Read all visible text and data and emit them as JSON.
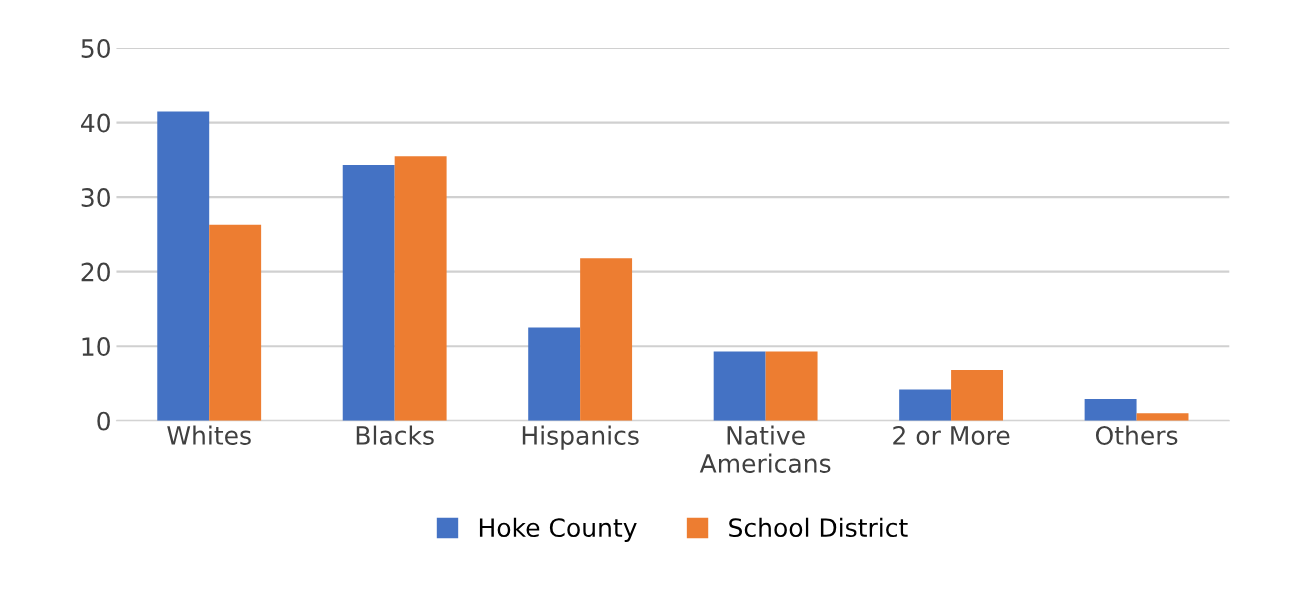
{
  "chart_data": {
    "type": "bar",
    "categories": [
      "Whites",
      "Blacks",
      "Hispanics",
      "Native\nAmericans",
      "2 or More",
      "Others"
    ],
    "series": [
      {
        "name": "Hoke County",
        "color": "#4472c4",
        "values": [
          41.5,
          34.3,
          12.5,
          9.3,
          4.2,
          2.9
        ]
      },
      {
        "name": "School District",
        "color": "#ed7d31",
        "values": [
          26.3,
          35.5,
          21.8,
          9.3,
          6.8,
          1.0
        ]
      }
    ],
    "ylim": [
      0,
      50
    ],
    "yticks": [
      0,
      10,
      20,
      30,
      40,
      50
    ],
    "grid": "y",
    "legend": "bottom"
  }
}
